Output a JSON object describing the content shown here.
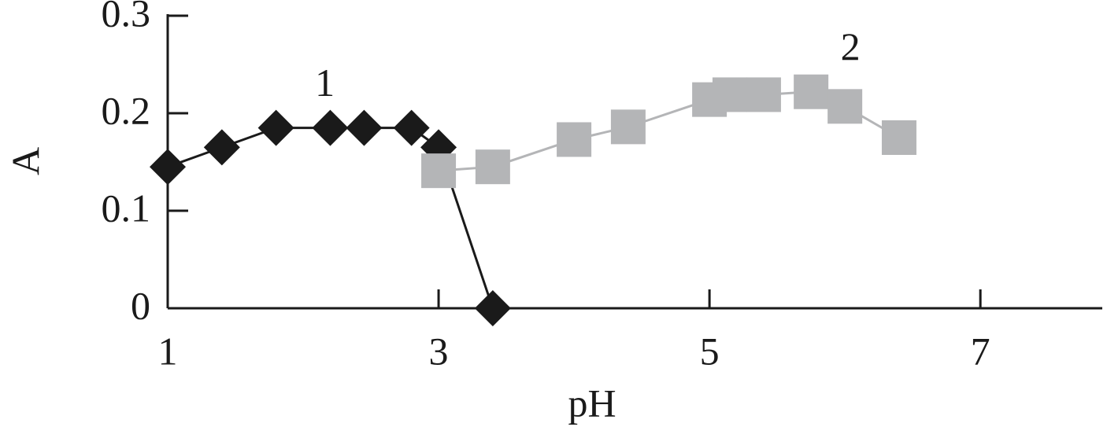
{
  "chart_data": {
    "type": "line",
    "x_label": "pH",
    "y_label": "A",
    "xlim": [
      1,
      7.9
    ],
    "xticks": [
      1,
      3,
      5,
      7
    ],
    "ylim": [
      0,
      0.3
    ],
    "yticks": [
      0,
      0.1,
      0.2,
      0.3
    ],
    "series": [
      {
        "name": "1",
        "color": "#1a1a1a",
        "marker": "diamond",
        "x": [
          1,
          1.4,
          1.8,
          2.2,
          2.45,
          2.8,
          3.0,
          3.4
        ],
        "values": [
          0.145,
          0.165,
          0.185,
          0.185,
          0.185,
          0.185,
          0.165,
          0
        ]
      },
      {
        "name": "2",
        "color": "#b4b5b7",
        "marker": "square",
        "x": [
          3.0,
          3.4,
          4.0,
          4.4,
          5.0,
          5.15,
          5.4,
          5.75,
          6.0,
          6.4
        ],
        "values": [
          0.141,
          0.145,
          0.173,
          0.186,
          0.214,
          0.219,
          0.219,
          0.222,
          0.207,
          0.175
        ]
      }
    ]
  }
}
